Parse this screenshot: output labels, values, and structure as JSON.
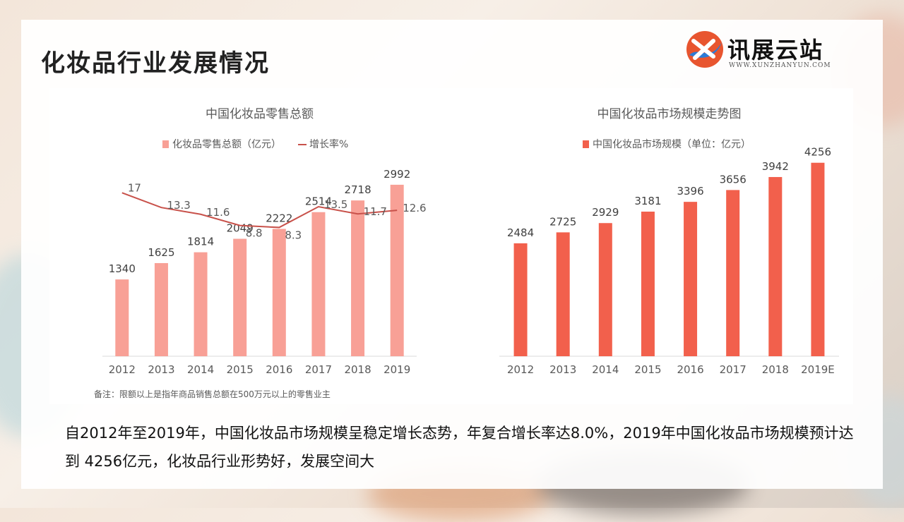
{
  "page": {
    "title": "化妆品行业发展情况",
    "logo_text": "讯展云站",
    "logo_sub": "WWW.XUNZHANYUN.COM",
    "summary": "自2012年至2019年，中国化妆品市场规模呈稳定增长态势，年复合增长率达8.0%，2019年中国化妆品市场规模预计达到 4256亿元，化妆品行业形势好，发展空间大"
  },
  "chart_data": [
    {
      "type": "bar",
      "title": "中国化妆品零售总额",
      "categories": [
        "2012",
        "2013",
        "2014",
        "2015",
        "2016",
        "2017",
        "2018",
        "2019"
      ],
      "series": [
        {
          "name": "化妆品零售总额（亿元）",
          "type": "bar",
          "color": "#f8a096",
          "values": [
            1340,
            1625,
            1814,
            2049,
            2222,
            2514,
            2718,
            2992
          ]
        },
        {
          "name": "增长率%",
          "type": "line",
          "color": "#c8514a",
          "values": [
            17,
            13.3,
            11.6,
            8.8,
            8.3,
            13.5,
            11.7,
            12.6
          ]
        }
      ],
      "ylim": [
        0,
        3200
      ],
      "y2lim": [
        -24,
        22
      ],
      "legend": "top",
      "grid": false,
      "note": "备注：限额以上是指年商品销售总额在500万元以上的零售业主"
    },
    {
      "type": "bar",
      "title": "中国化妆品市场规模走势图",
      "categories": [
        "2012",
        "2013",
        "2014",
        "2015",
        "2016",
        "2017",
        "2018",
        "2019E"
      ],
      "series": [
        {
          "name": "中国化妆品市场规模（单位：亿元）",
          "type": "bar",
          "color": "#f2604c",
          "values": [
            2484,
            2725,
            2929,
            3181,
            3396,
            3656,
            3942,
            4256
          ]
        }
      ],
      "ylim": [
        0,
        4500
      ],
      "legend": "top",
      "grid": false
    }
  ]
}
